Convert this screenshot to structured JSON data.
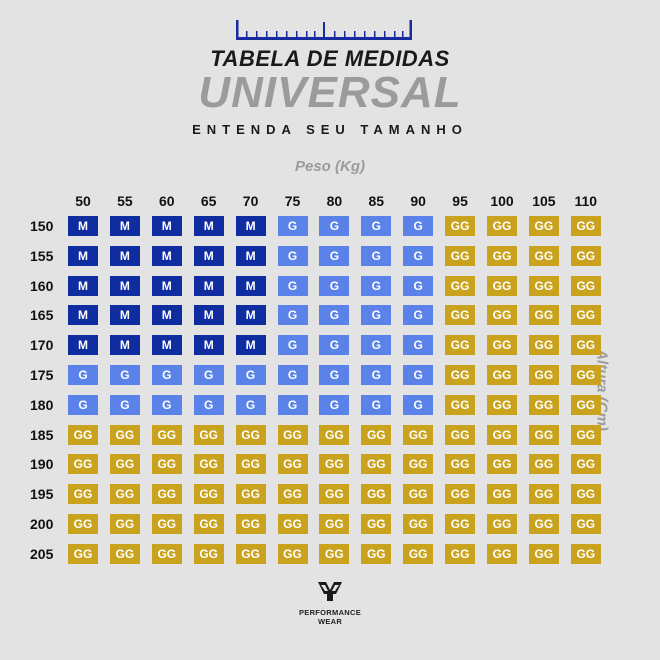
{
  "header": {
    "title_line1": "TABELA DE MEDIDAS",
    "title_line2": "UNIVERSAL",
    "subtitle": "ENTENDA SEU TAMANHO"
  },
  "axes": {
    "x_title": "Peso (Kg)",
    "y_title": "Altura (Cm)"
  },
  "weights": [
    "50",
    "55",
    "60",
    "65",
    "70",
    "75",
    "80",
    "85",
    "90",
    "95",
    "100",
    "105",
    "110"
  ],
  "heights": [
    "150",
    "155",
    "160",
    "165",
    "170",
    "175",
    "180",
    "185",
    "190",
    "195",
    "200",
    "205"
  ],
  "grid": [
    [
      "M",
      "M",
      "M",
      "M",
      "M",
      "G",
      "G",
      "G",
      "G",
      "GG",
      "GG",
      "GG",
      "GG"
    ],
    [
      "M",
      "M",
      "M",
      "M",
      "M",
      "G",
      "G",
      "G",
      "G",
      "GG",
      "GG",
      "GG",
      "GG"
    ],
    [
      "M",
      "M",
      "M",
      "M",
      "M",
      "G",
      "G",
      "G",
      "G",
      "GG",
      "GG",
      "GG",
      "GG"
    ],
    [
      "M",
      "M",
      "M",
      "M",
      "M",
      "G",
      "G",
      "G",
      "G",
      "GG",
      "GG",
      "GG",
      "GG"
    ],
    [
      "M",
      "M",
      "M",
      "M",
      "M",
      "G",
      "G",
      "G",
      "G",
      "GG",
      "GG",
      "GG",
      "GG"
    ],
    [
      "G",
      "G",
      "G",
      "G",
      "G",
      "G",
      "G",
      "G",
      "G",
      "GG",
      "GG",
      "GG",
      "GG"
    ],
    [
      "G",
      "G",
      "G",
      "G",
      "G",
      "G",
      "G",
      "G",
      "G",
      "GG",
      "GG",
      "GG",
      "GG"
    ],
    [
      "GG",
      "GG",
      "GG",
      "GG",
      "GG",
      "GG",
      "GG",
      "GG",
      "GG",
      "GG",
      "GG",
      "GG",
      "GG"
    ],
    [
      "GG",
      "GG",
      "GG",
      "GG",
      "GG",
      "GG",
      "GG",
      "GG",
      "GG",
      "GG",
      "GG",
      "GG",
      "GG"
    ],
    [
      "GG",
      "GG",
      "GG",
      "GG",
      "GG",
      "GG",
      "GG",
      "GG",
      "GG",
      "GG",
      "GG",
      "GG",
      "GG"
    ],
    [
      "GG",
      "GG",
      "GG",
      "GG",
      "GG",
      "GG",
      "GG",
      "GG",
      "GG",
      "GG",
      "GG",
      "GG",
      "GG"
    ],
    [
      "GG",
      "GG",
      "GG",
      "GG",
      "GG",
      "GG",
      "GG",
      "GG",
      "GG",
      "GG",
      "GG",
      "GG",
      "GG"
    ]
  ],
  "colors": {
    "M": "#0f2ca0",
    "G": "#5b82e8",
    "GG": "#c9a21e",
    "ruler": "#1a2a9e"
  },
  "brand": {
    "line1": "PERFORMANCE",
    "line2": "WEAR"
  }
}
